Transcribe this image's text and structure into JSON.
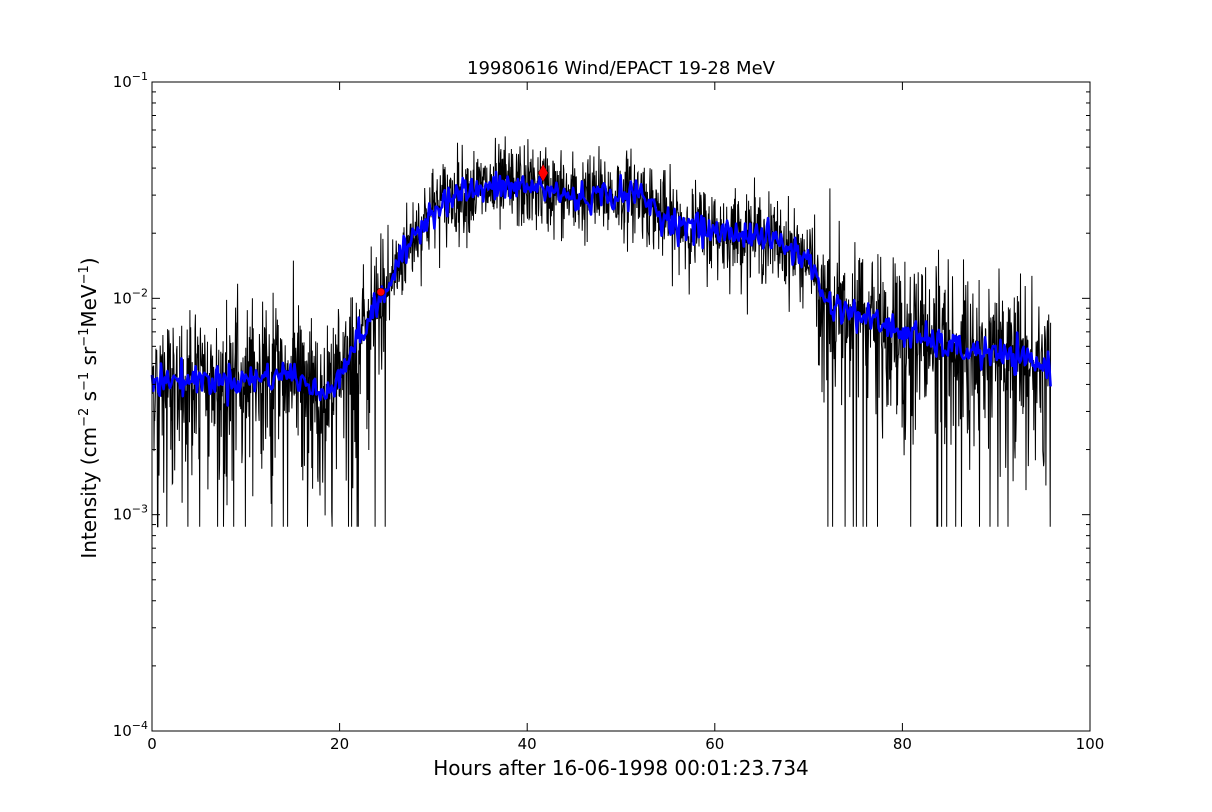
{
  "chart_data": {
    "type": "line",
    "title": "19980616 Wind/EPACT 19-28 MeV",
    "xlabel": "Hours after 16-06-1998 00:01:23.734",
    "ylabel_parts": [
      "Intensity (cm",
      "−2",
      " s",
      "−1",
      " sr",
      "−1",
      "MeV",
      "−1",
      ")"
    ],
    "xlim": [
      0,
      100
    ],
    "ylim": [
      0.0001,
      0.1
    ],
    "yscale": "log",
    "grid": false,
    "x_ticks": [
      0,
      20,
      40,
      60,
      80,
      100
    ],
    "x_tick_labels": [
      "0",
      "20",
      "40",
      "60",
      "80",
      "100"
    ],
    "y_ticks": [
      0.0001,
      0.001,
      0.01,
      0.1
    ],
    "y_tick_labels": [
      {
        "base": "10",
        "exp": "−4"
      },
      {
        "base": "10",
        "exp": "−3"
      },
      {
        "base": "10",
        "exp": "−2"
      },
      {
        "base": "10",
        "exp": "−1"
      }
    ],
    "series": [
      {
        "style": "raw",
        "color": "#000000",
        "x_range": [
          0,
          95.8
        ],
        "floor": 0.00088,
        "envelope": {
          "x": [
            0,
            5,
            10,
            15,
            18,
            20,
            22,
            24,
            26,
            28,
            30,
            33,
            36,
            39,
            42,
            45,
            48,
            52,
            55,
            58,
            61,
            64,
            67,
            70,
            72,
            75,
            78,
            82,
            86,
            90,
            95.8
          ],
          "y": [
            0.0042,
            0.0042,
            0.0042,
            0.0045,
            0.0035,
            0.0045,
            0.0065,
            0.0092,
            0.0135,
            0.02,
            0.026,
            0.031,
            0.032,
            0.033,
            0.032,
            0.029,
            0.03,
            0.03,
            0.023,
            0.021,
            0.02,
            0.02,
            0.018,
            0.015,
            0.0095,
            0.0085,
            0.0075,
            0.0065,
            0.0058,
            0.0055,
            0.0048
          ]
        }
      },
      {
        "style": "smoothed",
        "color": "#0000ff",
        "x": [
          0,
          5,
          10,
          15,
          18,
          20,
          22,
          24,
          26,
          28,
          30,
          33,
          36,
          39,
          42,
          45,
          48,
          52,
          55,
          58,
          61,
          64,
          67,
          70,
          72,
          75,
          78,
          82,
          86,
          90,
          95.8
        ],
        "y": [
          0.0042,
          0.0042,
          0.0042,
          0.0045,
          0.0035,
          0.0045,
          0.0065,
          0.0092,
          0.0135,
          0.02,
          0.026,
          0.031,
          0.032,
          0.033,
          0.032,
          0.029,
          0.03,
          0.03,
          0.023,
          0.021,
          0.02,
          0.02,
          0.018,
          0.015,
          0.0095,
          0.0085,
          0.0075,
          0.0065,
          0.0058,
          0.0055,
          0.0048
        ]
      }
    ],
    "markers": [
      {
        "shape": "circle",
        "color": "#ff0000",
        "x": 24.4,
        "y": 0.0107
      },
      {
        "shape": "diamond",
        "color": "#ff0000",
        "x": 41.7,
        "y": 0.038
      }
    ]
  }
}
